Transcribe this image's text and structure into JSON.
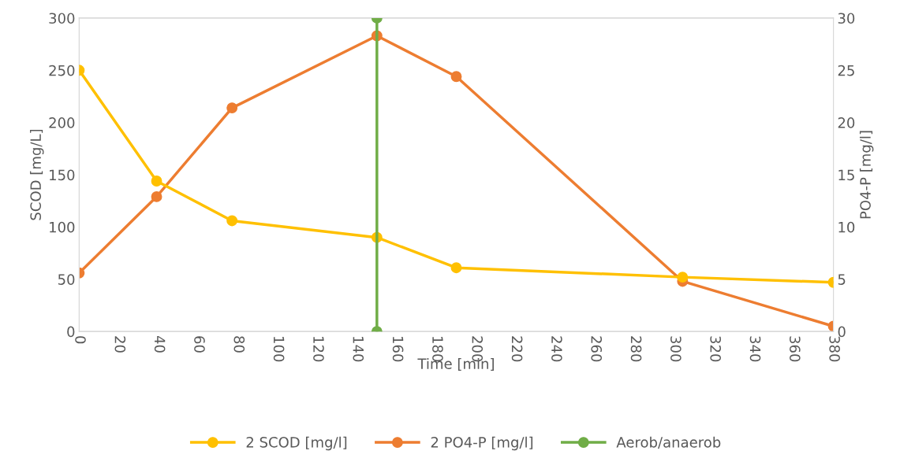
{
  "chart_data": {
    "type": "line",
    "xlabel": "Time [min]",
    "ylabel": "SCOD [mg/L]",
    "y2label": "PO4-P [mg/l]",
    "xlim": [
      0,
      380
    ],
    "xticks": [
      0,
      20,
      40,
      60,
      80,
      100,
      120,
      140,
      160,
      180,
      200,
      220,
      240,
      260,
      280,
      300,
      320,
      340,
      360,
      380
    ],
    "ylim": [
      0,
      300
    ],
    "yticks": [
      0,
      50,
      100,
      150,
      200,
      250,
      300
    ],
    "y2lim": [
      0,
      30
    ],
    "y2ticks": [
      0,
      5,
      10,
      15,
      20,
      25,
      30
    ],
    "grid": false,
    "legend": "bottom",
    "marker": "circle",
    "line_style": "solid",
    "series": [
      {
        "name": "2 SCOD [mg/l]",
        "color": "#ffc000",
        "x": [
          0,
          39,
          77,
          150,
          190,
          304,
          380
        ],
        "values": [
          250,
          144,
          106,
          90,
          61,
          52,
          47
        ]
      },
      {
        "name": "2 PO4-P [mg/l]",
        "color": "#ed7d31",
        "axis": "y2",
        "x": [
          0,
          39,
          77,
          150,
          190,
          304,
          380
        ],
        "values": [
          5.6,
          12.9,
          21.4,
          28.3,
          24.4,
          4.8,
          0.5
        ]
      },
      {
        "name": "Aerob/anaerob",
        "color": "#70ad47",
        "x": [
          150,
          150
        ],
        "values": [
          0,
          300
        ]
      }
    ]
  }
}
